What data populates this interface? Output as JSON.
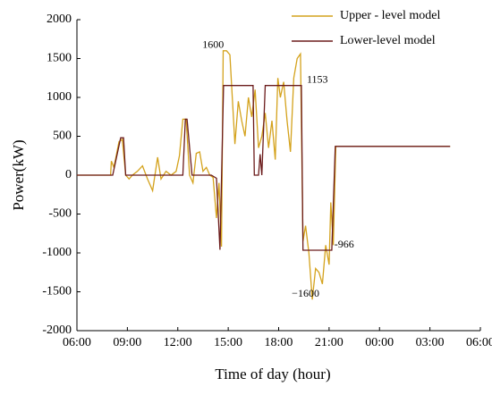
{
  "chart_data": {
    "type": "line",
    "xlabel": "Time of day (hour)",
    "ylabel": "Power(kW)",
    "xlim": [
      6,
      30
    ],
    "ylim": [
      -2000,
      2000
    ],
    "xticks": [
      {
        "value": 6,
        "label": "06:00"
      },
      {
        "value": 9,
        "label": "09:00"
      },
      {
        "value": 12,
        "label": "12:00"
      },
      {
        "value": 15,
        "label": "15:00"
      },
      {
        "value": 18,
        "label": "18:00"
      },
      {
        "value": 21,
        "label": "21:00"
      },
      {
        "value": 24,
        "label": "00:00"
      },
      {
        "value": 27,
        "label": "03:00"
      },
      {
        "value": 30,
        "label": "06:00"
      }
    ],
    "yticks": [
      -2000,
      -1500,
      -1000,
      -500,
      0,
      500,
      1000,
      1500,
      2000
    ],
    "legend": "upper right",
    "series": [
      {
        "name": "Upper - level model",
        "color": "#d4a21c",
        "x": [
          6,
          8.0,
          8.05,
          8.2,
          8.5,
          8.7,
          8.9,
          9.1,
          9.3,
          9.6,
          9.9,
          10.2,
          10.5,
          10.8,
          11.0,
          11.3,
          11.6,
          11.9,
          12.1,
          12.3,
          12.5,
          12.7,
          12.9,
          13.1,
          13.3,
          13.5,
          13.7,
          13.9,
          14.1,
          14.3,
          14.45,
          14.6,
          14.7,
          14.9,
          15.1,
          15.4,
          15.6,
          15.8,
          16.0,
          16.2,
          16.4,
          16.6,
          16.8,
          17.0,
          17.2,
          17.4,
          17.6,
          17.8,
          17.95,
          18.1,
          18.3,
          18.5,
          18.7,
          18.9,
          19.1,
          19.3,
          19.45,
          19.6,
          19.8,
          20.0,
          20.2,
          20.4,
          20.6,
          20.8,
          21.0,
          21.1,
          21.25,
          21.4,
          28.2
        ],
        "values": [
          0,
          0,
          180,
          100,
          430,
          460,
          0,
          -50,
          0,
          50,
          120,
          -50,
          -200,
          230,
          -50,
          50,
          0,
          50,
          250,
          720,
          720,
          0,
          -100,
          280,
          300,
          50,
          100,
          0,
          -30,
          -550,
          -100,
          -920,
          1600,
          1600,
          1550,
          400,
          950,
          700,
          500,
          1000,
          750,
          1100,
          350,
          500,
          800,
          350,
          700,
          200,
          1250,
          1000,
          1200,
          700,
          300,
          1250,
          1500,
          1560,
          -850,
          -650,
          -1000,
          -1600,
          -1200,
          -1250,
          -1400,
          -900,
          -1150,
          -350,
          -900,
          370,
          370
        ]
      },
      {
        "name": "Lower-level model",
        "color": "#6b1b1b",
        "x": [
          6,
          8.13,
          8.6,
          8.77,
          8.9,
          12.3,
          12.45,
          12.55,
          12.85,
          14.0,
          14.3,
          14.51,
          14.72,
          16.48,
          16.55,
          16.8,
          16.9,
          17.0,
          17.2,
          19.35,
          19.45,
          21.16,
          21.37,
          28.2
        ],
        "values": [
          0,
          0,
          480,
          480,
          0,
          0,
          720,
          720,
          0,
          0,
          -40,
          -960,
          1153,
          1153,
          0,
          0,
          270,
          0,
          1153,
          1153,
          -966,
          -966,
          370,
          370
        ]
      }
    ],
    "annotations": [
      {
        "label": "1600",
        "value": 1600,
        "x": 14.1
      },
      {
        "label": "1153",
        "value": 1153,
        "x": 20.3
      },
      {
        "label": "-966",
        "value": -966,
        "x": 21.9
      },
      {
        "label": "−1600",
        "value": -1600,
        "x": 19.6
      }
    ]
  }
}
